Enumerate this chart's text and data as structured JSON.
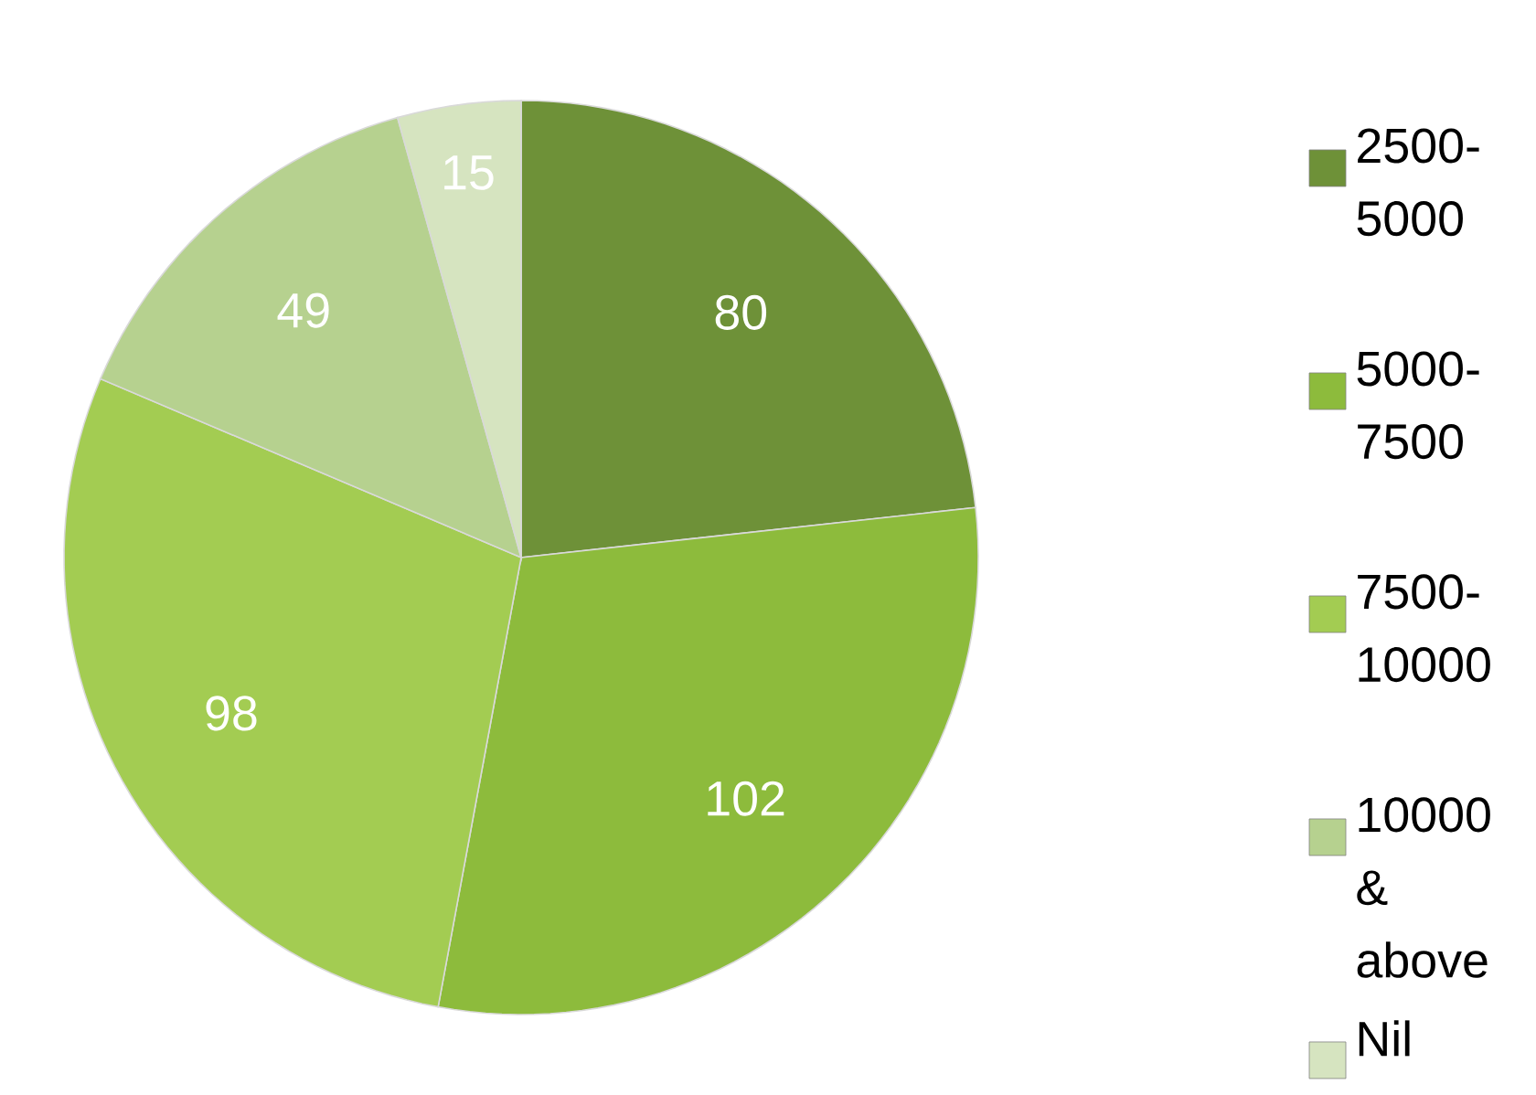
{
  "chart_data": {
    "type": "pie",
    "categories": [
      "2500-5000",
      "5000-7500",
      "7500-10000",
      "10000 & above",
      "Nil"
    ],
    "values": [
      80,
      102,
      98,
      49,
      15
    ],
    "colors": [
      "#6e9138",
      "#8dbb3c",
      "#a3cc52",
      "#b6d18f",
      "#d6e4c0"
    ],
    "data_labels": true,
    "legend": "right"
  }
}
